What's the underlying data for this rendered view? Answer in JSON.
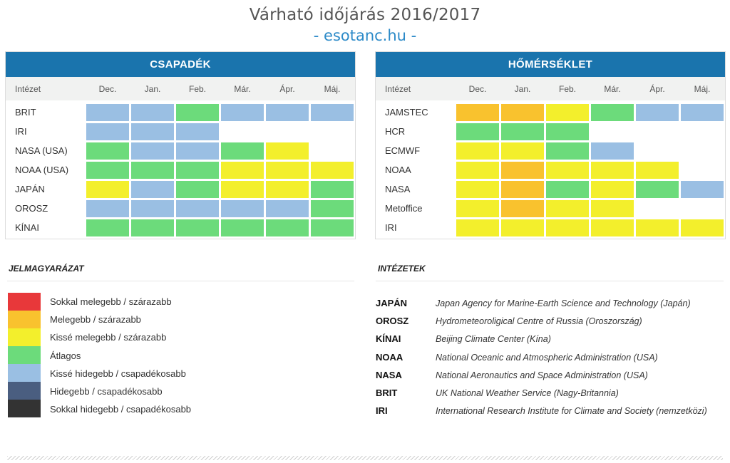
{
  "title": "Várható időjárás 2016/2017",
  "subtitle": "- esotanc.hu -",
  "colors": {
    "dry_much": "#e8383a",
    "warm": "#f9c22e",
    "slight_warm": "#f3ef2c",
    "average": "#6cdb7b",
    "slight_wet": "#9abfe3",
    "wet": "#4a5e80",
    "wet_much": "#333333"
  },
  "precip": {
    "heading": "CSAPADÉK",
    "col_label": "Intézet",
    "months": [
      "Dec.",
      "Jan.",
      "Feb.",
      "Már.",
      "Ápr.",
      "Máj."
    ],
    "rows": [
      {
        "name": "BRIT",
        "cells": [
          "slight_wet",
          "slight_wet",
          "average",
          "slight_wet",
          "slight_wet",
          "slight_wet"
        ]
      },
      {
        "name": "IRI",
        "cells": [
          "slight_wet",
          "slight_wet",
          "slight_wet",
          "",
          "",
          ""
        ]
      },
      {
        "name": "NASA (USA)",
        "cells": [
          "average",
          "slight_wet",
          "slight_wet",
          "average",
          "slight_warm",
          ""
        ]
      },
      {
        "name": "NOAA (USA)",
        "cells": [
          "average",
          "average",
          "average",
          "slight_warm",
          "slight_warm",
          "slight_warm"
        ]
      },
      {
        "name": "JAPÁN",
        "cells": [
          "slight_warm",
          "slight_wet",
          "average",
          "slight_warm",
          "slight_warm",
          "average"
        ]
      },
      {
        "name": "OROSZ",
        "cells": [
          "slight_wet",
          "slight_wet",
          "slight_wet",
          "slight_wet",
          "slight_wet",
          "average"
        ]
      },
      {
        "name": "KÍNAI",
        "cells": [
          "average",
          "average",
          "average",
          "average",
          "average",
          "average"
        ]
      }
    ]
  },
  "temp": {
    "heading": "HŐMÉRSÉKLET",
    "col_label": "Intézet",
    "months": [
      "Dec.",
      "Jan.",
      "Feb.",
      "Már.",
      "Ápr.",
      "Máj."
    ],
    "rows": [
      {
        "name": "JAMSTEC",
        "cells": [
          "warm",
          "warm",
          "slight_warm",
          "average",
          "slight_wet",
          "slight_wet"
        ]
      },
      {
        "name": "HCR",
        "cells": [
          "average",
          "average",
          "average",
          "",
          "",
          ""
        ]
      },
      {
        "name": "ECMWF",
        "cells": [
          "slight_warm",
          "slight_warm",
          "average",
          "slight_wet",
          "",
          ""
        ]
      },
      {
        "name": "NOAA",
        "cells": [
          "slight_warm",
          "warm",
          "slight_warm",
          "slight_warm",
          "slight_warm",
          ""
        ]
      },
      {
        "name": "NASA",
        "cells": [
          "slight_warm",
          "warm",
          "average",
          "slight_warm",
          "average",
          "slight_wet"
        ]
      },
      {
        "name": "Metoffice",
        "cells": [
          "slight_warm",
          "warm",
          "slight_warm",
          "slight_warm",
          "",
          ""
        ]
      },
      {
        "name": "IRI",
        "cells": [
          "slight_warm",
          "slight_warm",
          "slight_warm",
          "slight_warm",
          "slight_warm",
          "slight_warm"
        ]
      }
    ]
  },
  "legend": {
    "title": "JELMAGYARÁZAT",
    "items": [
      {
        "key": "dry_much",
        "label": "Sokkal melegebb / szárazabb"
      },
      {
        "key": "warm",
        "label": "Melegebb / szárazabb"
      },
      {
        "key": "slight_warm",
        "label": "Kissé melegebb / szárazabb"
      },
      {
        "key": "average",
        "label": "Átlagos"
      },
      {
        "key": "slight_wet",
        "label": "Kissé hidegebb / csapadékosabb"
      },
      {
        "key": "wet",
        "label": "Hidegebb / csapadékosabb"
      },
      {
        "key": "wet_much",
        "label": "Sokkal hidegebb / csapadékosabb"
      }
    ]
  },
  "institutes": {
    "title": "INTÉZETEK",
    "items": [
      {
        "abbr": "JAPÁN",
        "name": "Japan Agency for Marine-Earth Science and Technology (Japán)"
      },
      {
        "abbr": "OROSZ",
        "name": "Hydrometeoroligical Centre of Russia (Oroszország)"
      },
      {
        "abbr": "KÍNAI",
        "name": "Beijing Climate Center (Kína)"
      },
      {
        "abbr": "NOAA",
        "name": "National Oceanic and Atmospheric Administration (USA)"
      },
      {
        "abbr": "NASA",
        "name": "National Aeronautics and Space Administration (USA)"
      },
      {
        "abbr": "BRIT",
        "name": "UK National Weather Service (Nagy-Britannia)"
      },
      {
        "abbr": "IRI",
        "name": "International Research Institute for Climate and Society (nemzetközi)"
      }
    ]
  }
}
